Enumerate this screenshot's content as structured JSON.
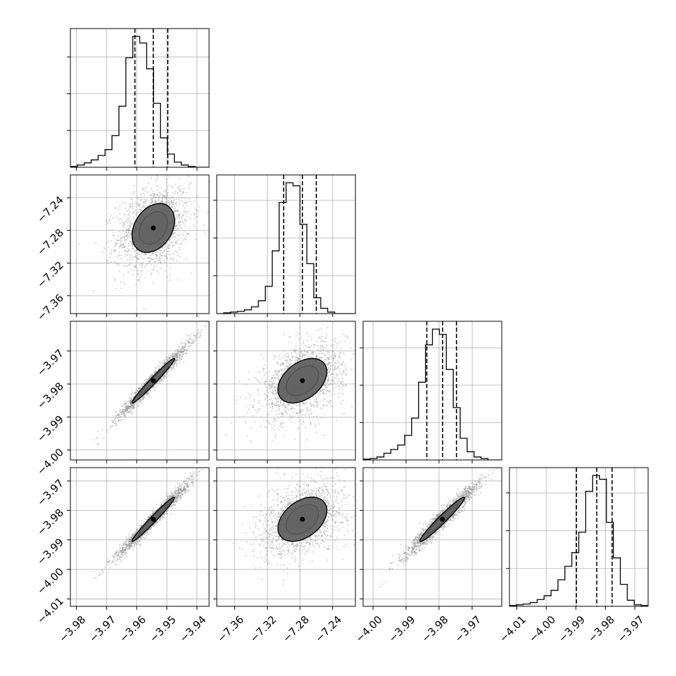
{
  "chart_data": {
    "type": "corner",
    "params": [
      {
        "range": [
          -3.982,
          -3.936
        ],
        "ticks": [
          -3.98,
          -3.97,
          -3.96,
          -3.95,
          -3.94
        ],
        "tick_labels": [
          "−3.98",
          "−3.97",
          "−3.96",
          "−3.95",
          "−3.94"
        ],
        "quantiles": [
          -3.9606,
          -3.9545,
          -3.9497
        ],
        "mean": -3.9545,
        "sd": 0.0047
      },
      {
        "range": [
          -7.382,
          -7.212
        ],
        "ticks": [
          -7.36,
          -7.32,
          -7.28,
          -7.24
        ],
        "tick_labels": [
          "−7.36",
          "−7.32",
          "−7.28",
          "−7.24"
        ],
        "quantiles": [
          -7.3,
          -7.277,
          -7.26
        ],
        "mean": -7.277,
        "sd": 0.02
      },
      {
        "range": [
          -4.003,
          -3.961
        ],
        "ticks": [
          -4.0,
          -3.99,
          -3.98,
          -3.97
        ],
        "tick_labels": [
          "−4.00",
          "−3.99",
          "−3.98",
          "−3.97"
        ],
        "quantiles": [
          -3.9837,
          -3.9789,
          -3.9747
        ],
        "mean": -3.979,
        "sd": 0.0045
      },
      {
        "range": [
          -4.0125,
          -3.9655
        ],
        "ticks": [
          -4.01,
          -4.0,
          -3.99,
          -3.98,
          -3.97
        ],
        "tick_labels": [
          "−4.01",
          "−4.00",
          "−3.99",
          "−3.98",
          "−3.97"
        ],
        "quantiles": [
          -3.9898,
          -3.9829,
          -3.9777
        ],
        "mean": -3.983,
        "sd": 0.005
      }
    ],
    "histograms": [
      {
        "param": 0,
        "bins": 20,
        "counts": [
          1,
          3,
          6,
          10,
          16,
          24,
          43,
          83,
          149,
          178,
          169,
          134,
          87,
          40,
          18,
          7,
          3,
          1,
          0,
          0
        ]
      },
      {
        "param": 1,
        "bins": 20,
        "counts": [
          0,
          1,
          2,
          3,
          5,
          9,
          17,
          36,
          83,
          147,
          173,
          169,
          118,
          66,
          21,
          7,
          2,
          0,
          0,
          0
        ]
      },
      {
        "param": 2,
        "bins": 20,
        "counts": [
          1,
          2,
          4,
          9,
          14,
          20,
          33,
          56,
          104,
          154,
          175,
          168,
          121,
          70,
          29,
          11,
          4,
          2,
          0,
          0
        ]
      },
      {
        "param": 3,
        "bins": 20,
        "counts": [
          1,
          2,
          3,
          5,
          9,
          14,
          21,
          35,
          53,
          71,
          98,
          152,
          173,
          168,
          111,
          64,
          29,
          8,
          2,
          1
        ]
      }
    ],
    "correlations": {
      "1-0": 0.3,
      "2-0": 0.98,
      "2-1": 0.4,
      "3-0": 0.98,
      "3-1": 0.4,
      "3-2": 0.97
    },
    "contour_levels": [
      0.5,
      1.0,
      1.5
    ],
    "grid": true,
    "colors": {
      "line": "#000000",
      "points": "#888888",
      "grid": "#b0b0b0"
    }
  }
}
